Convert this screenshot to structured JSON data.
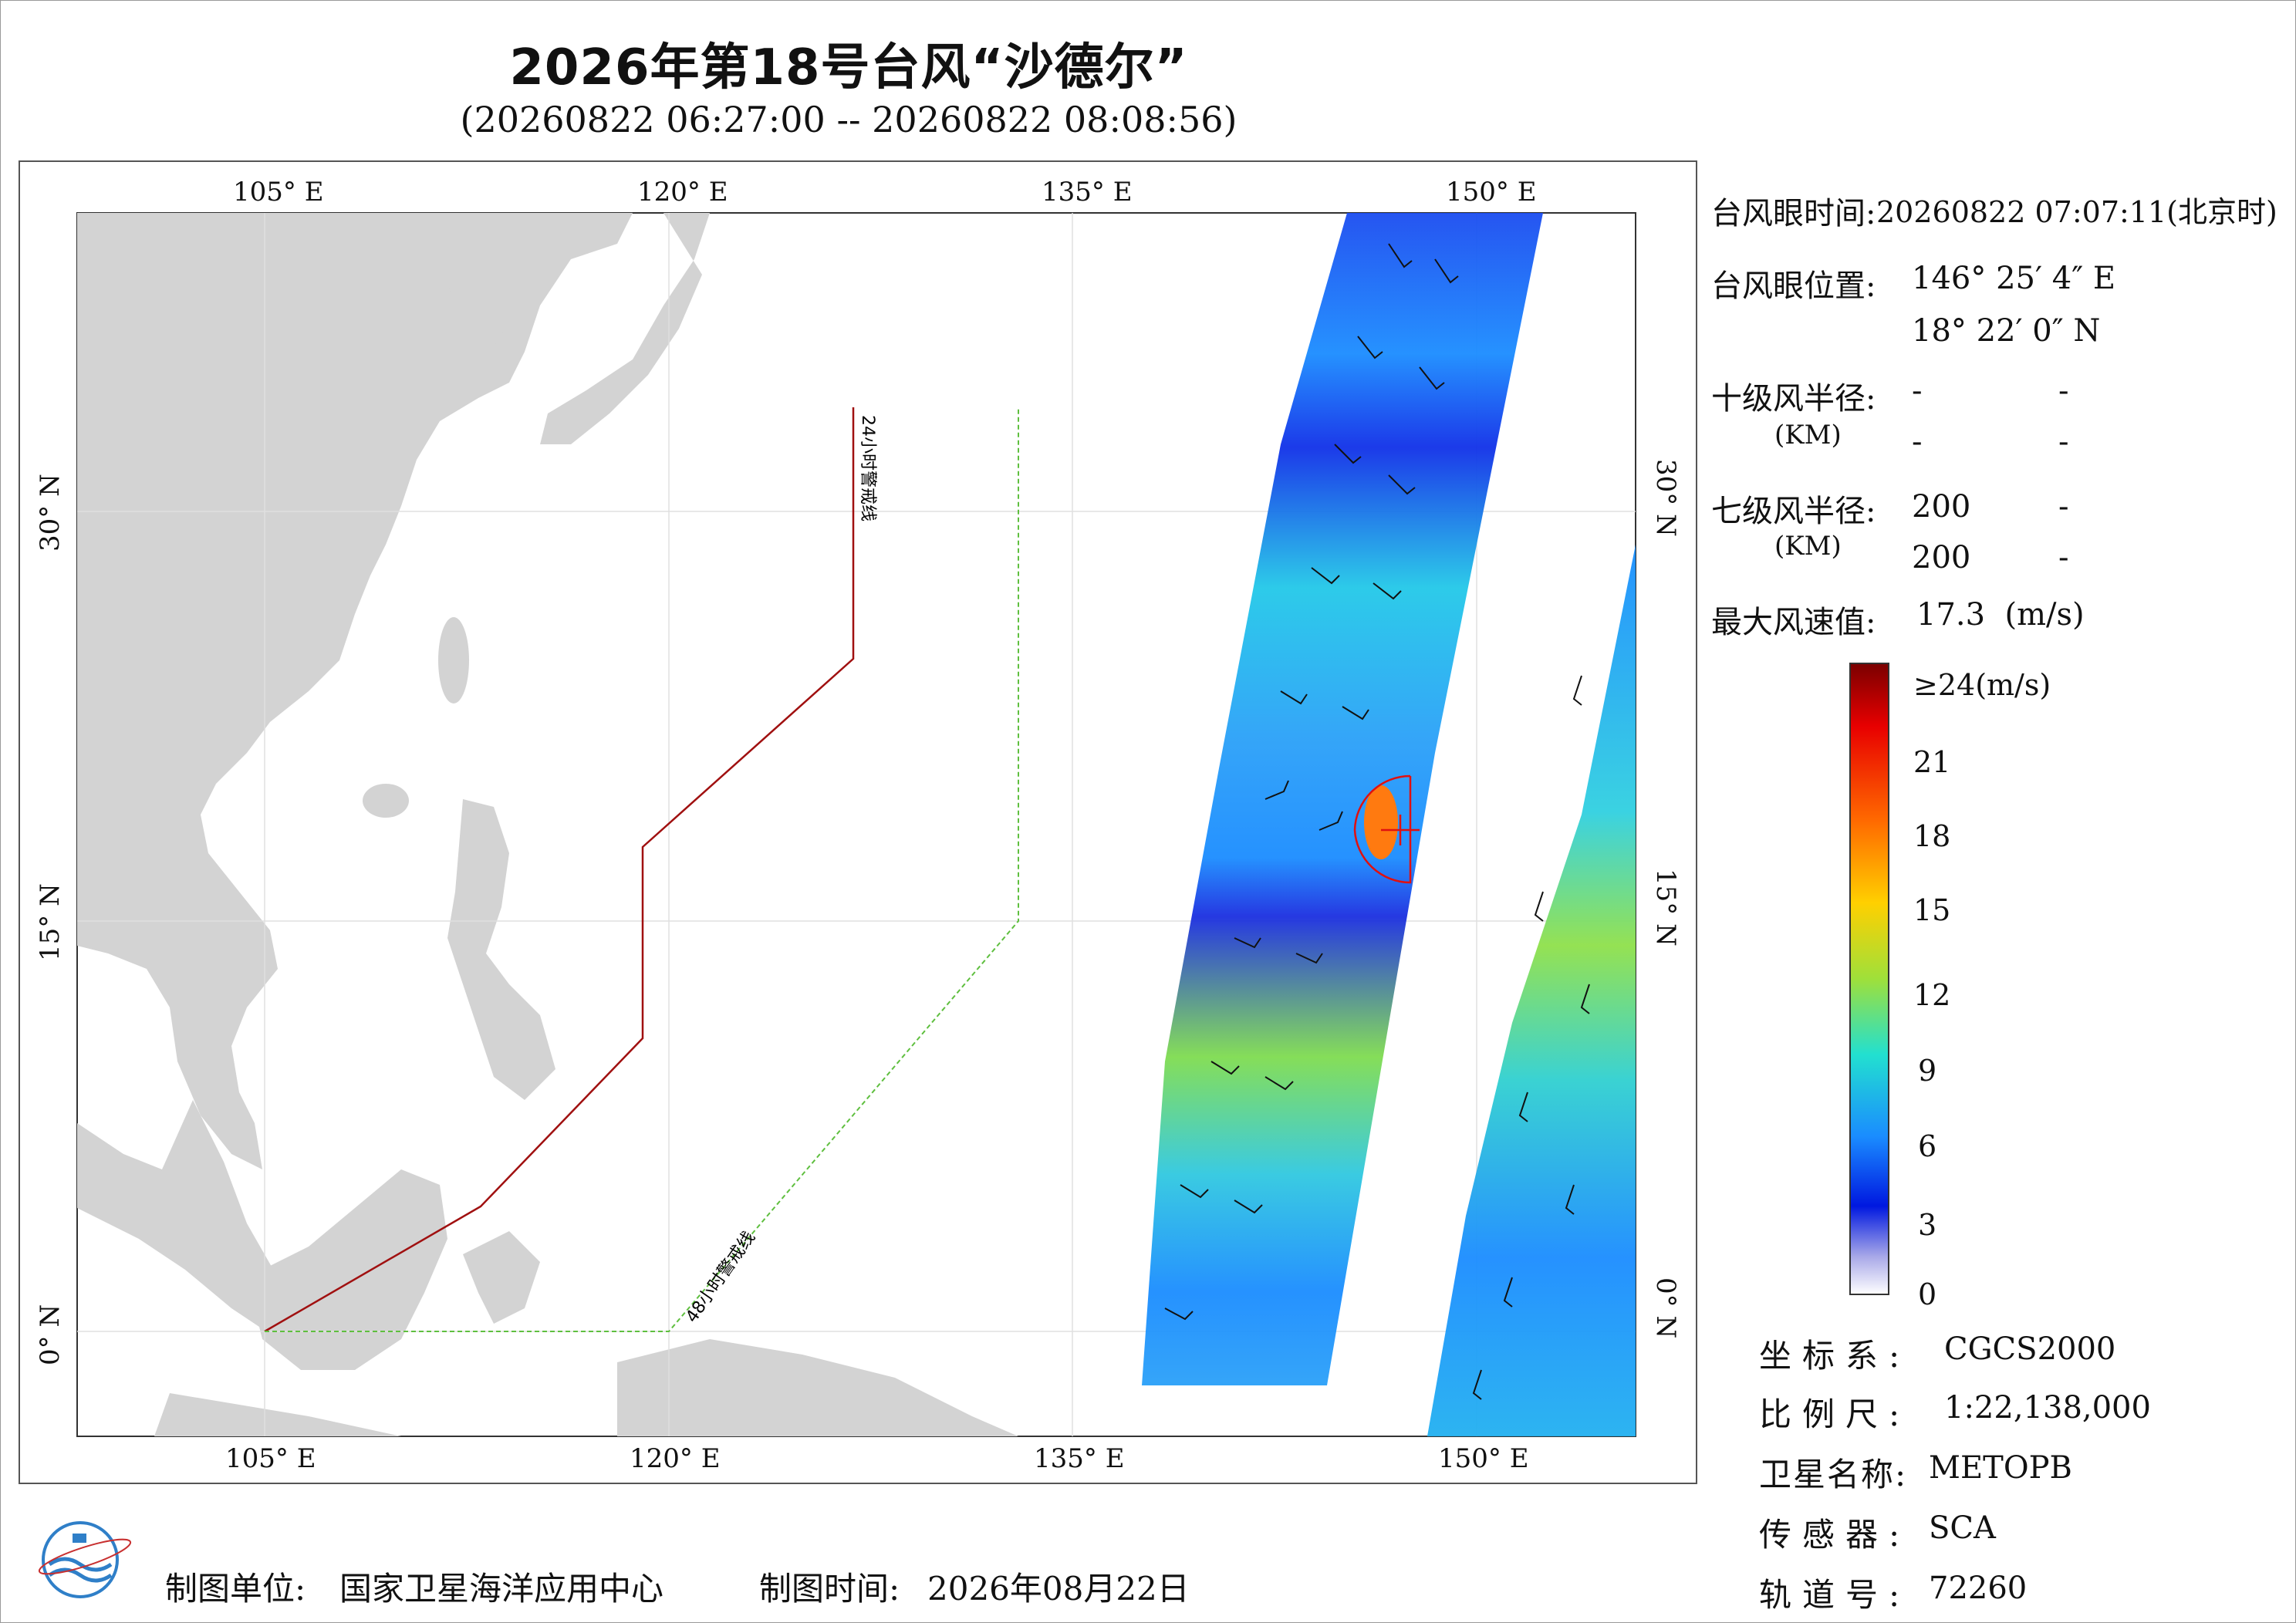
{
  "title": "2026年第18号台风“沙德尔”",
  "subtitle": "(20260822 06:27:00 -- 20260822 08:08:56)",
  "map": {
    "lon_ticks_top": [
      "105° E",
      "120° E",
      "135° E",
      "150° E"
    ],
    "lon_ticks_bottom": [
      "105° E",
      "120° E",
      "135° E",
      "150° E"
    ],
    "lat_ticks_left": [
      "30° N",
      "15° N",
      "0° N"
    ],
    "lat_ticks_right": [
      "30° N",
      "15° N",
      "0° N"
    ],
    "warning_line_24": "24小时警戒线",
    "warning_line_48": "48小时警戒线",
    "colors": {
      "land": "#d3d3d3",
      "sea": "#ffffff",
      "line24": "#a01010",
      "line48": "#5fbf3f",
      "eye": "#e01010"
    }
  },
  "info": {
    "eye_time_label": "台风眼时间:",
    "eye_time_value": "20260822 07:07:11(北京时)",
    "eye_pos_label": "台风眼位置:",
    "eye_lon": "146° 25′ 4″ E",
    "eye_lat": "18° 22′ 0″ N",
    "r10_label": "十级风半径:",
    "r7_label": "七级风半径:",
    "km_unit": "(KM)",
    "r10_values": [
      "-",
      "-",
      "-",
      "-"
    ],
    "r7_values": [
      "200",
      "-",
      "200",
      "-"
    ],
    "max_wind_label": "最大风速值:",
    "max_wind_value": "17.3  (m/s)"
  },
  "colorbar": {
    "top_label": "≥24(m/s)",
    "ticks": [
      "21",
      "18",
      "15",
      "12",
      "9",
      "6",
      "3",
      "0"
    ],
    "stops": [
      "#7a0000",
      "#e80000",
      "#ff6a00",
      "#ffd000",
      "#9fe03a",
      "#22e0d0",
      "#1a8cff",
      "#0018e0",
      "#a8a8e8",
      "#ffffff"
    ]
  },
  "meta": {
    "crs_label": "坐标系:",
    "crs_value": "CGCS2000",
    "scale_label": "比例尺:",
    "scale_value": "1:22,138,000",
    "satellite_label": "卫星名称:",
    "satellite_value": "METOPB",
    "sensor_label": "传感器:",
    "sensor_value": "SCA",
    "orbit_label": "轨道号:",
    "orbit_value": "72260"
  },
  "footer": {
    "producer_label": "制图单位:",
    "producer_value": "国家卫星海洋应用中心",
    "date_label": "制图时间:",
    "date_value": "2026年08月22日"
  }
}
